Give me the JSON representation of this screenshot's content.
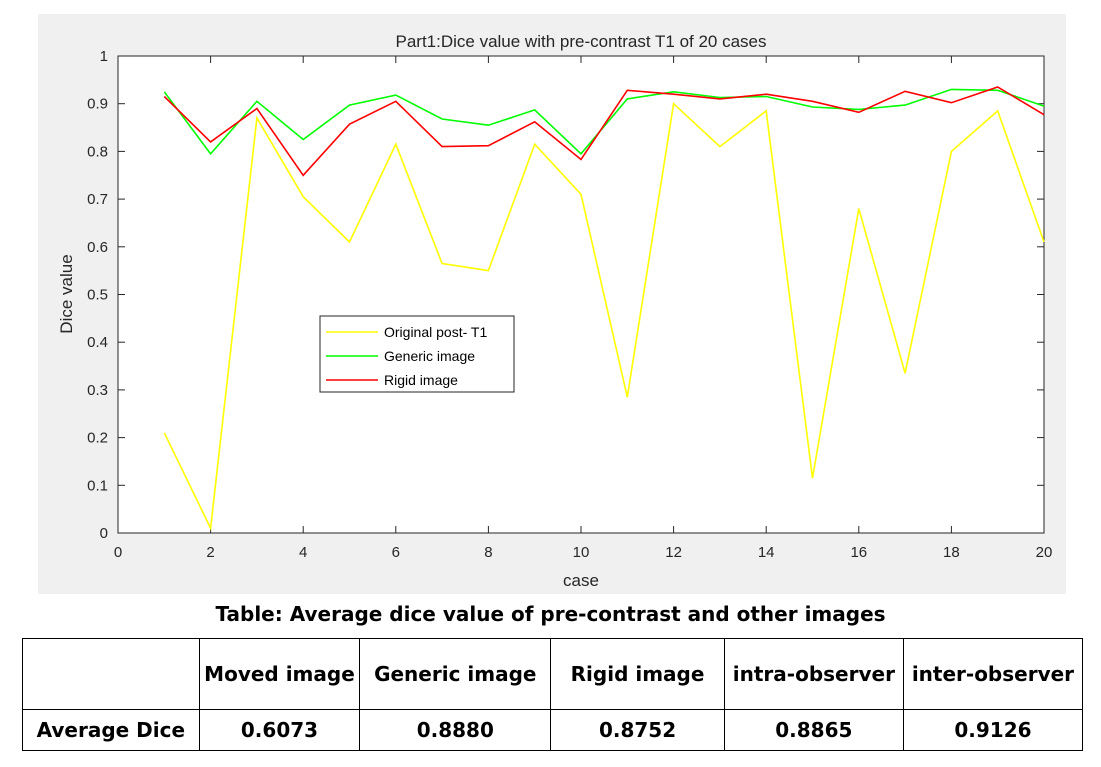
{
  "chart_data": {
    "type": "line",
    "title": "Part1:Dice value with pre-contrast T1 of 20 cases",
    "xlabel": "case",
    "ylabel": "Dice value",
    "xlim": [
      0,
      20
    ],
    "ylim": [
      0,
      1
    ],
    "xticks": [
      0,
      2,
      4,
      6,
      8,
      10,
      12,
      14,
      16,
      18,
      20
    ],
    "yticks": [
      "0",
      "0.1",
      "0.2",
      "0.3",
      "0.4",
      "0.5",
      "0.6",
      "0.7",
      "0.8",
      "0.9",
      "1"
    ],
    "grid": false,
    "legend_position": "center-left",
    "x": [
      1,
      2,
      3,
      4,
      5,
      6,
      7,
      8,
      9,
      10,
      11,
      12,
      13,
      14,
      15,
      16,
      17,
      18,
      19,
      20
    ],
    "series": [
      {
        "name": "Original post- T1",
        "color": "#ffff00",
        "values": [
          0.21,
          0.01,
          0.87,
          0.705,
          0.61,
          0.815,
          0.565,
          0.55,
          0.815,
          0.71,
          0.285,
          0.9,
          0.81,
          0.885,
          0.115,
          0.68,
          0.335,
          0.8,
          0.885,
          0.61
        ]
      },
      {
        "name": "Generic image",
        "color": "#00ff00",
        "values": [
          0.925,
          0.795,
          0.905,
          0.825,
          0.897,
          0.918,
          0.868,
          0.855,
          0.887,
          0.795,
          0.91,
          0.925,
          0.913,
          0.915,
          0.893,
          0.888,
          0.897,
          0.93,
          0.928,
          0.895
        ]
      },
      {
        "name": "Rigid image",
        "color": "#ff0000",
        "values": [
          0.915,
          0.82,
          0.89,
          0.75,
          0.857,
          0.905,
          0.81,
          0.812,
          0.862,
          0.783,
          0.928,
          0.92,
          0.91,
          0.92,
          0.905,
          0.882,
          0.926,
          0.902,
          0.935,
          0.877
        ]
      }
    ]
  },
  "table": {
    "caption": "Table: Average dice value of pre-contrast and other images",
    "headers": [
      "",
      "Moved image",
      "Generic image",
      "Rigid image",
      "intra-observer",
      "inter-observer"
    ],
    "row_label": "Average Dice",
    "values": [
      "0.6073",
      "0.8880",
      "0.8752",
      "0.8865",
      "0.9126"
    ]
  }
}
